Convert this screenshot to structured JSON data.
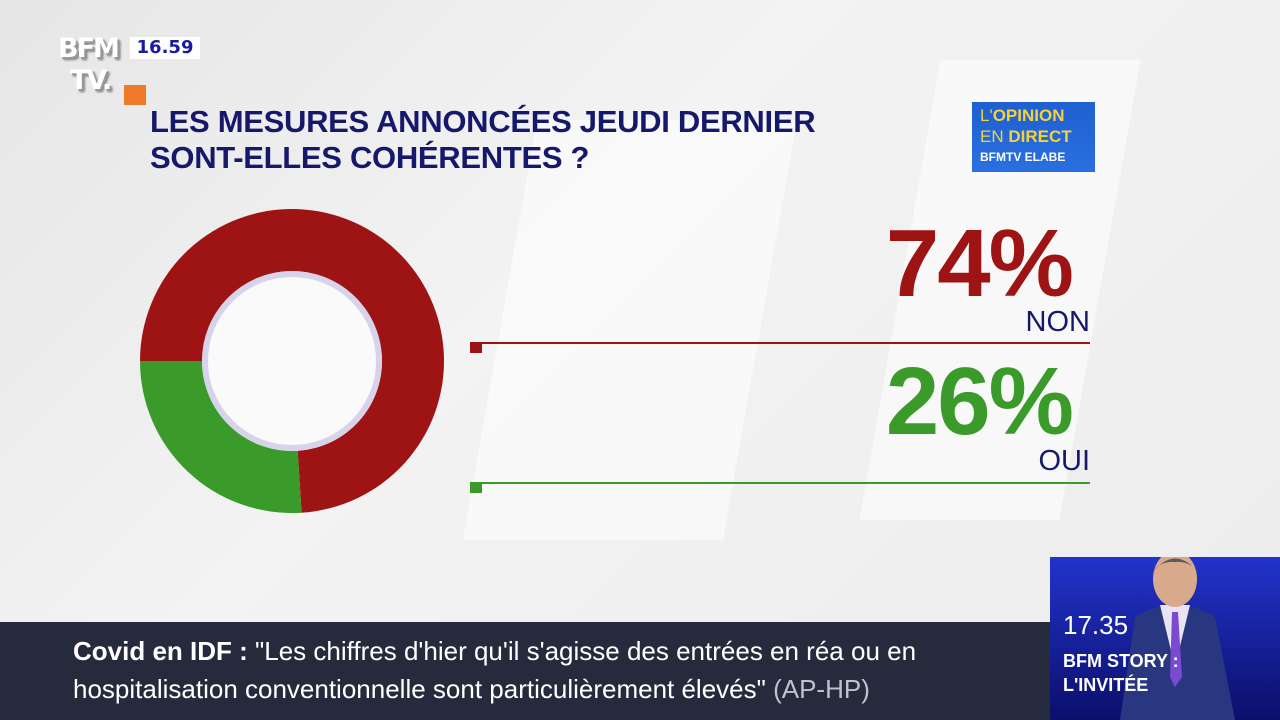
{
  "channel": {
    "logo": "BFM TV",
    "clock": "16.59"
  },
  "badge": {
    "line1_a": "L'",
    "line1_b": "OPINION",
    "line2_a": "EN ",
    "line2_b": "DIRECT",
    "line3": "BFMTV ELABE"
  },
  "chart_data": {
    "type": "pie",
    "variant": "donut",
    "title": "LES MESURES ANNONCÉES JEUDI DERNIER SONT-ELLES COHÉRENTES ?",
    "title_lines": [
      "LES MESURES ANNONCÉES JEUDI DERNIER",
      "SONT-ELLES COHÉRENTES ?"
    ],
    "categories": [
      "NON",
      "OUI"
    ],
    "values": [
      74,
      26
    ],
    "labels": [
      "74%",
      "26%"
    ],
    "colors": [
      "#9e1414",
      "#3a9a2a"
    ]
  },
  "ticker": {
    "topic": "Covid en IDF :",
    "line1": "\"Les chiffres d'hier qu'il s'agisse des entrées en réa ou en",
    "line2": "hospitalisation conventionnelle sont particulièrement élevés\"",
    "source": "(AP-HP)"
  },
  "promo": {
    "time": "17.35",
    "show_line1": "BFM STORY :",
    "show_line2": "L'INVITÉE"
  }
}
